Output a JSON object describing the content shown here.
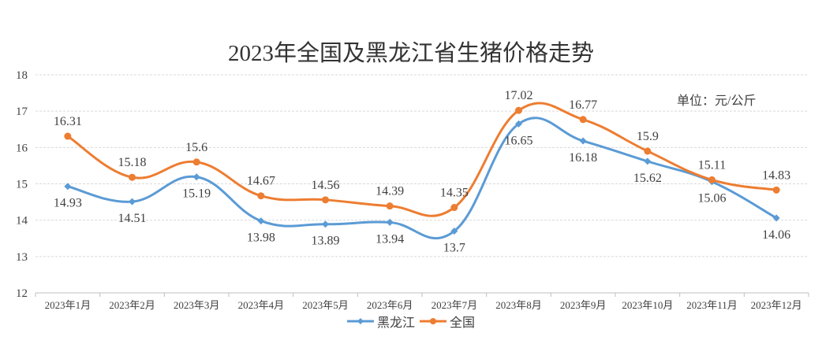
{
  "chart_data": {
    "type": "line",
    "title": "2023年全国及黑龙江省生猪价格走势",
    "annotation": "单位：元/公斤",
    "categories": [
      "2023年1月",
      "2023年2月",
      "2023年3月",
      "2023年4月",
      "2023年5月",
      "2023年6月",
      "2023年7月",
      "2023年8月",
      "2023年9月",
      "2023年10月",
      "2023年11月",
      "2023年12月"
    ],
    "series": [
      {
        "name": "黑龙江",
        "color": "#5B9BD5",
        "values": [
          14.93,
          14.51,
          15.19,
          13.98,
          13.89,
          13.94,
          13.7,
          16.65,
          16.18,
          15.62,
          15.06,
          14.06
        ]
      },
      {
        "name": "全国",
        "color": "#ED7D31",
        "values": [
          16.31,
          15.18,
          15.6,
          14.67,
          14.56,
          14.39,
          14.35,
          17.02,
          16.77,
          15.9,
          15.11,
          14.83
        ]
      }
    ],
    "ylim": [
      12,
      18
    ],
    "yticks": [
      12,
      13,
      14,
      15,
      16,
      17,
      18
    ],
    "grid": true,
    "smooth": true,
    "legend_position": "bottom"
  }
}
